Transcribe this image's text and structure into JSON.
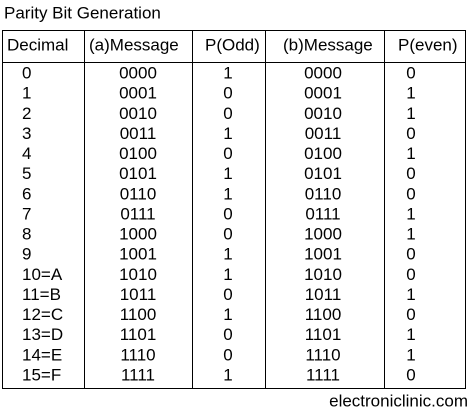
{
  "title": "Parity Bit Generation",
  "table": {
    "header": [
      "Decimal",
      "(a)Message",
      "P(Odd)",
      "(b)Message",
      "P(even)"
    ],
    "rows": [
      [
        "0",
        "0000",
        "1",
        "0000",
        "0"
      ],
      [
        "1",
        "0001",
        "0",
        "0001",
        "1"
      ],
      [
        "2",
        "0010",
        "0",
        "0010",
        "1"
      ],
      [
        "3",
        "0011",
        "1",
        "0011",
        "0"
      ],
      [
        "4",
        "0100",
        "0",
        "0100",
        "1"
      ],
      [
        "5",
        "0101",
        "1",
        "0101",
        "0"
      ],
      [
        "6",
        "0110",
        "1",
        "0110",
        "0"
      ],
      [
        "7",
        "0111",
        "0",
        "0111",
        "1"
      ],
      [
        "8",
        "1000",
        "0",
        "1000",
        "1"
      ],
      [
        "9",
        "1001",
        "1",
        "1001",
        "0"
      ],
      [
        "10=A",
        "1010",
        "1",
        "1010",
        "0"
      ],
      [
        "11=B",
        "1011",
        "0",
        "1011",
        "1"
      ],
      [
        "12=C",
        "1100",
        "1",
        "1100",
        "0"
      ],
      [
        "13=D",
        "1101",
        "0",
        "1101",
        "1"
      ],
      [
        "14=E",
        "1110",
        "0",
        "1110",
        "1"
      ],
      [
        "15=F",
        "1111",
        "1",
        "1111",
        "0"
      ]
    ]
  },
  "footer": "electroniclinic.com"
}
